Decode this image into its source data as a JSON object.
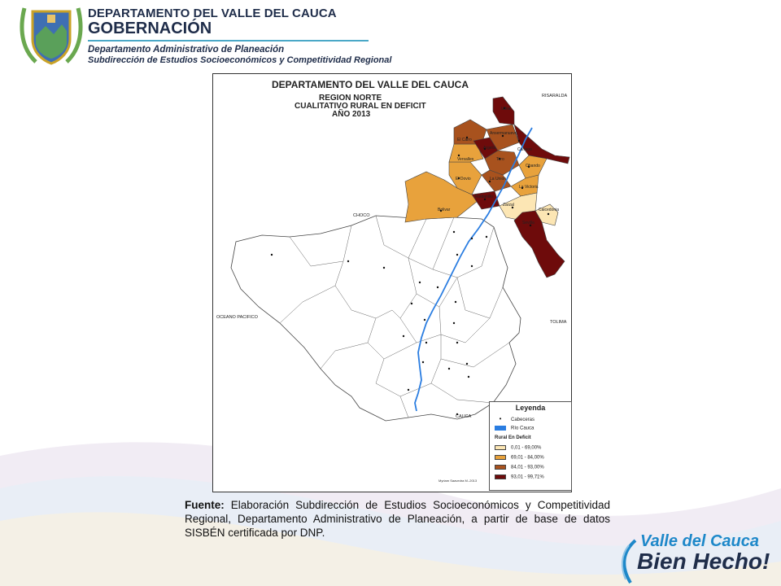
{
  "header": {
    "department": "DEPARTAMENTO DEL VALLE DEL CAUCA",
    "government": "GOBERNACIÓN",
    "office": "Departamento Administrativo de Planeación",
    "subdivision": "Subdirección de Estudios Socioeconómicos y Competitividad Regional"
  },
  "map": {
    "title": "DEPARTAMENTO DEL VALLE DEL CAUCA",
    "subtitle_lines": [
      "REGION NORTE",
      "CUALITATIVO RURAL EN DEFICIT",
      "AÑO 2013"
    ],
    "neighbors": {
      "risaralda": "RISARALDA",
      "choco": "CHOCO",
      "pacific": "OCEANO PACIFICO",
      "tolima": "TOLIMA",
      "cauca": "CAUCA"
    },
    "municipalities": {
      "ansermanuevo": "Ansermanuevo",
      "el_cairo": "El Cairo",
      "argelia": "Argelia",
      "cartago": "Cartago",
      "versalles": "Versalles",
      "toro": "Toro",
      "obando": "Obando",
      "el_dovio": "El Dovio",
      "la_union": "La Union",
      "la_victoria": "La Victoria",
      "roldanillo": "Roldanillo",
      "zarzal": "Zarzal",
      "caicedonia": "Caicedonia",
      "bolivar": "Bolivar",
      "sevilla": "Sevilla",
      "ulloa": "Ulloa"
    },
    "author": "Myriam Saavedra M.-2013",
    "legend": {
      "title": "Leyenda",
      "capitals": "Cabeceras",
      "river": "Río Cauca",
      "section": "Rural En Deficit",
      "classes": [
        {
          "label": "0,01 -   69,00%",
          "color": "#fce6b4"
        },
        {
          "label": "69,01 - 84,00%",
          "color": "#e8a23c"
        },
        {
          "label": "84,01 - 93,00%",
          "color": "#a8521e"
        },
        {
          "label": "93,01 - 99,71%",
          "color": "#6e0b0b"
        }
      ],
      "river_color": "#2a7de1"
    }
  },
  "source": {
    "label": "Fuente:",
    "text": " Elaboración Subdirección de Estudios Socioeconómicos y Competitividad Regional, Departamento Administrativo de Planeación, a partir de base de datos SISBÉN certificada por DNP."
  },
  "brand": {
    "line1": "Valle del Cauca",
    "line2": "Bien Hecho!"
  }
}
